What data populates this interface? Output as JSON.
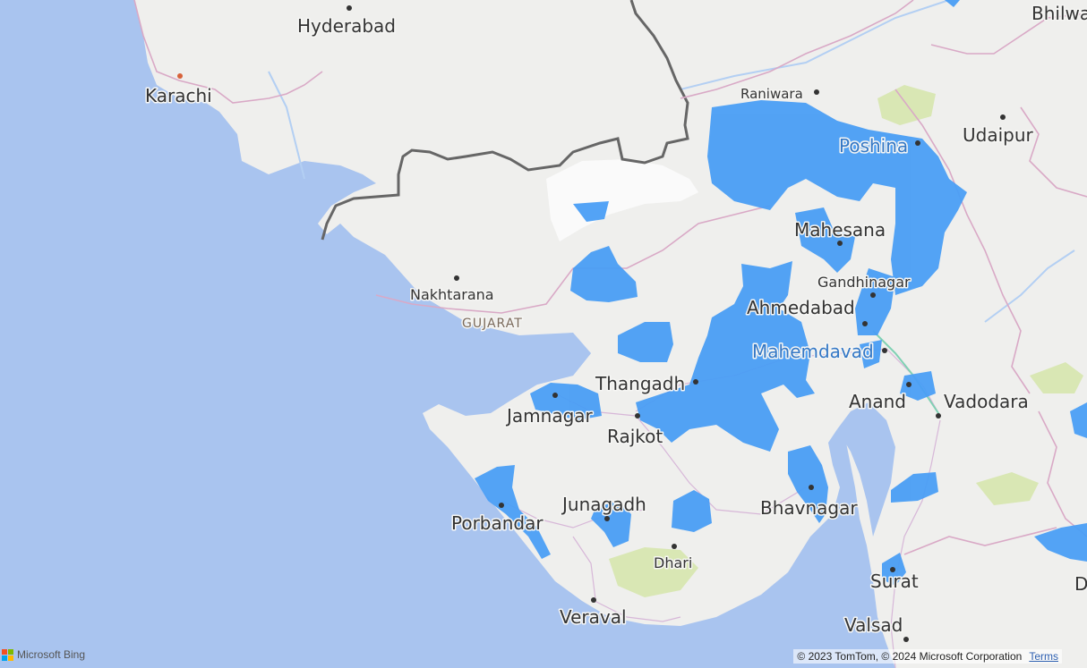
{
  "map": {
    "region_label": "GUJARAT",
    "cities": [
      {
        "id": "hyderabad",
        "name": "Hyderabad"
      },
      {
        "id": "karachi",
        "name": "Karachi"
      },
      {
        "id": "raniwara",
        "name": "Raniwara"
      },
      {
        "id": "poshina",
        "name": "Poshina"
      },
      {
        "id": "udaipur",
        "name": "Udaipur"
      },
      {
        "id": "bhilwara",
        "name": "Bhilwa"
      },
      {
        "id": "mahesana",
        "name": "Mahesana"
      },
      {
        "id": "gandhinagar",
        "name": "Gandhinagar"
      },
      {
        "id": "ahmedabad",
        "name": "Ahmedabad"
      },
      {
        "id": "mahemdavad",
        "name": "Mahemdavad"
      },
      {
        "id": "nakhtarana",
        "name": "Nakhtarana"
      },
      {
        "id": "thangadh",
        "name": "Thangadh"
      },
      {
        "id": "anand",
        "name": "Anand"
      },
      {
        "id": "vadodara",
        "name": "Vadodara"
      },
      {
        "id": "jamnagar",
        "name": "Jamnagar"
      },
      {
        "id": "rajkot",
        "name": "Rajkot"
      },
      {
        "id": "porbandar",
        "name": "Porbandar"
      },
      {
        "id": "junagadh",
        "name": "Junagadh"
      },
      {
        "id": "bhavnagar",
        "name": "Bhavnagar"
      },
      {
        "id": "dhari",
        "name": "Dhari"
      },
      {
        "id": "surat",
        "name": "Surat"
      },
      {
        "id": "veraval",
        "name": "Veraval"
      },
      {
        "id": "valsad",
        "name": "Valsad"
      },
      {
        "id": "d_edge",
        "name": "D"
      }
    ],
    "overlay_color": "#4a9ef5",
    "water_color": "#a9c4ef",
    "land_color": "#efefed"
  },
  "attribution": {
    "text": "© 2023 TomTom, © 2024 Microsoft Corporation",
    "terms_label": "Terms"
  },
  "logo": {
    "label": "Microsoft Bing",
    "colors": [
      "#f25022",
      "#7fba00",
      "#00a4ef",
      "#ffb900"
    ]
  }
}
